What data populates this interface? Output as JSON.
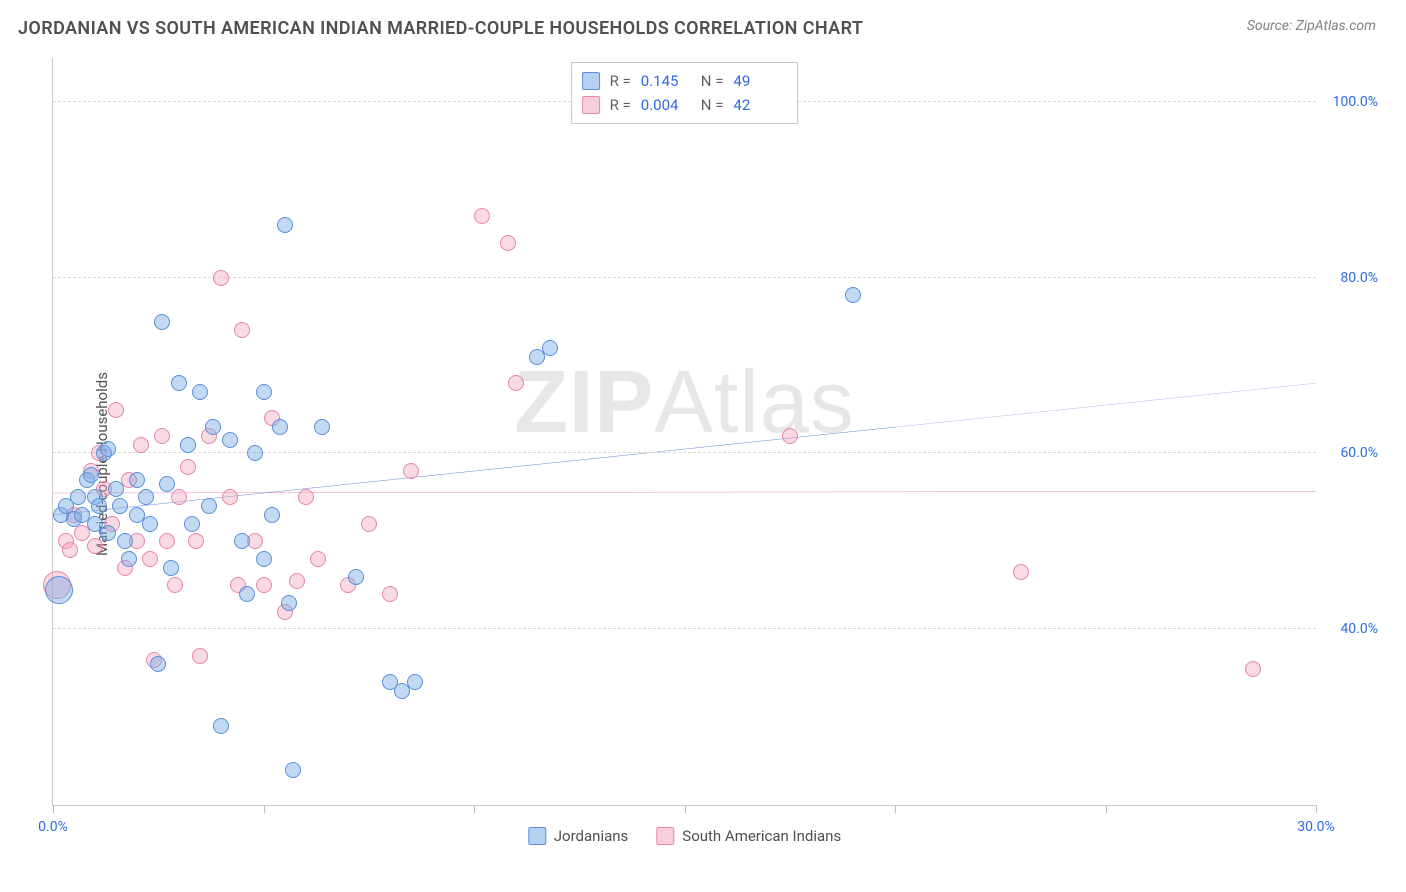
{
  "title": "JORDANIAN VS SOUTH AMERICAN INDIAN MARRIED-COUPLE HOUSEHOLDS CORRELATION CHART",
  "source": "Source: ZipAtlas.com",
  "ylabel": "Married-couple Households",
  "watermark_bold": "ZIP",
  "watermark_light": "Atlas",
  "chart": {
    "xlim": [
      0,
      30
    ],
    "ylim": [
      20,
      105
    ],
    "xticks": [
      0,
      5,
      10,
      15,
      20,
      25,
      30
    ],
    "xtick_labels": {
      "0": "0.0%",
      "30": "30.0%"
    },
    "ygrids": [
      40,
      60,
      80,
      100
    ],
    "ytick_labels": {
      "40": "40.0%",
      "60": "60.0%",
      "80": "80.0%",
      "100": "100.0%"
    },
    "background": "#ffffff",
    "grid_color": "#d8d8d8",
    "axis_color": "#c8c8c8",
    "label_color_blue": "#2e6ae6",
    "marker_radius": 8,
    "large_marker_radius": 14
  },
  "series": {
    "blue": {
      "label": "Jordanians",
      "fill": "rgba(120,170,230,0.45)",
      "stroke": "#5a8fd8",
      "trend_color": "#2456c9",
      "trend_solid_end_x": 20,
      "trend": {
        "x0": 0,
        "y0": 53,
        "x1": 30,
        "y1": 68
      },
      "points": [
        [
          0.2,
          53
        ],
        [
          0.3,
          54
        ],
        [
          0.5,
          52.5
        ],
        [
          0.6,
          55
        ],
        [
          0.7,
          53
        ],
        [
          0.8,
          57
        ],
        [
          0.9,
          57.5
        ],
        [
          1.0,
          52
        ],
        [
          1.0,
          55
        ],
        [
          1.1,
          54
        ],
        [
          1.2,
          60
        ],
        [
          1.3,
          60.5
        ],
        [
          1.3,
          51
        ],
        [
          1.5,
          56
        ],
        [
          1.6,
          54
        ],
        [
          1.7,
          50
        ],
        [
          1.8,
          48
        ],
        [
          2.0,
          53
        ],
        [
          2.0,
          57
        ],
        [
          2.2,
          55
        ],
        [
          2.3,
          52
        ],
        [
          2.5,
          36
        ],
        [
          2.6,
          75
        ],
        [
          2.7,
          56.5
        ],
        [
          2.8,
          47
        ],
        [
          3.0,
          68
        ],
        [
          3.2,
          61
        ],
        [
          3.3,
          52
        ],
        [
          3.5,
          67
        ],
        [
          3.7,
          54
        ],
        [
          3.8,
          63
        ],
        [
          4.0,
          29
        ],
        [
          4.2,
          61.5
        ],
        [
          4.5,
          50
        ],
        [
          4.6,
          44
        ],
        [
          4.8,
          60
        ],
        [
          5.0,
          67
        ],
        [
          5.0,
          48
        ],
        [
          5.2,
          53
        ],
        [
          5.4,
          63
        ],
        [
          5.5,
          86
        ],
        [
          5.6,
          43
        ],
        [
          5.7,
          24
        ],
        [
          6.4,
          63
        ],
        [
          7.2,
          46
        ],
        [
          8.0,
          34
        ],
        [
          8.3,
          33
        ],
        [
          8.6,
          34
        ],
        [
          11.5,
          71
        ],
        [
          11.8,
          72
        ],
        [
          19.0,
          78
        ]
      ],
      "large_points": [
        [
          0.15,
          44.5
        ]
      ]
    },
    "pink": {
      "label": "South American Indians",
      "fill": "rgba(240,160,185,0.40)",
      "stroke": "#e887a8",
      "trend_color": "#e65a8e",
      "trend": {
        "x0": 0,
        "y0": 55.5,
        "x1": 30,
        "y1": 55.7
      },
      "points": [
        [
          0.3,
          50
        ],
        [
          0.4,
          49
        ],
        [
          0.5,
          53
        ],
        [
          0.7,
          51
        ],
        [
          0.9,
          58
        ],
        [
          1.0,
          49.5
        ],
        [
          1.1,
          60
        ],
        [
          1.2,
          56
        ],
        [
          1.4,
          52
        ],
        [
          1.5,
          65
        ],
        [
          1.7,
          47
        ],
        [
          1.8,
          57
        ],
        [
          2.0,
          50
        ],
        [
          2.1,
          61
        ],
        [
          2.3,
          48
        ],
        [
          2.4,
          36.5
        ],
        [
          2.6,
          62
        ],
        [
          2.7,
          50
        ],
        [
          2.9,
          45
        ],
        [
          3.0,
          55
        ],
        [
          3.2,
          58.5
        ],
        [
          3.4,
          50
        ],
        [
          3.5,
          37
        ],
        [
          3.7,
          62
        ],
        [
          4.0,
          80
        ],
        [
          4.2,
          55
        ],
        [
          4.4,
          45
        ],
        [
          4.5,
          74
        ],
        [
          4.8,
          50
        ],
        [
          5.0,
          45
        ],
        [
          5.2,
          64
        ],
        [
          5.5,
          42
        ],
        [
          5.8,
          45.5
        ],
        [
          6.0,
          55
        ],
        [
          6.3,
          48
        ],
        [
          7.0,
          45
        ],
        [
          7.5,
          52
        ],
        [
          8.0,
          44
        ],
        [
          8.5,
          58
        ],
        [
          10.2,
          87
        ],
        [
          10.8,
          84
        ],
        [
          11.0,
          68
        ],
        [
          17.5,
          62
        ],
        [
          23.0,
          46.5
        ],
        [
          28.5,
          35.5
        ]
      ],
      "large_points": [
        [
          0.1,
          45
        ]
      ]
    }
  },
  "corr_box": {
    "rows": [
      {
        "swatch": "blue",
        "r": "0.145",
        "n": "49"
      },
      {
        "swatch": "pink",
        "r": "0.004",
        "n": "42"
      }
    ],
    "label_r": "R =",
    "label_n": "N ="
  },
  "legend": {
    "items": [
      {
        "swatch": "blue",
        "label": "Jordanians"
      },
      {
        "swatch": "pink",
        "label": "South American Indians"
      }
    ]
  }
}
